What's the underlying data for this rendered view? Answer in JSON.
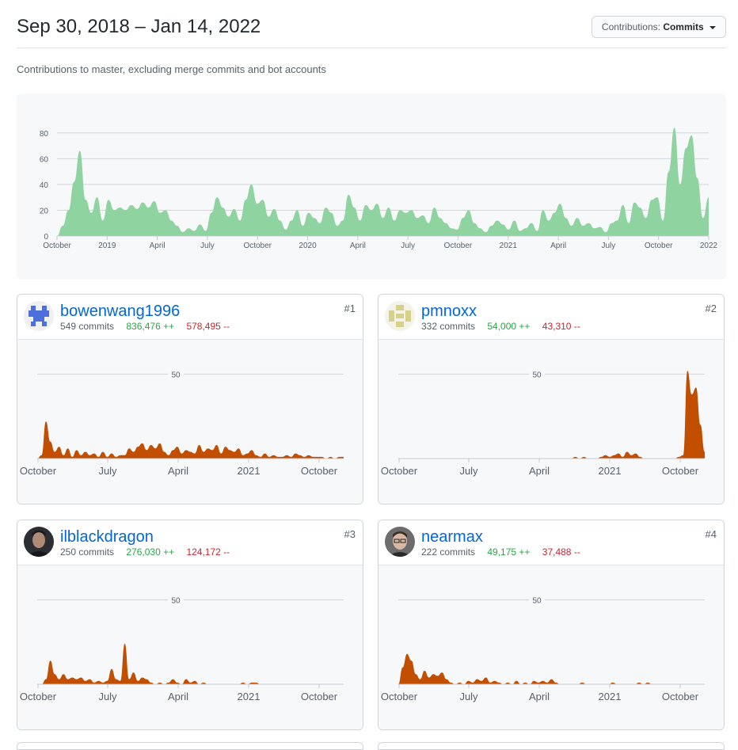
{
  "header": {
    "date_range": "Sep 30, 2018 – Jan 14, 2022",
    "contributions_label": "Contributions:",
    "contributions_value": "Commits"
  },
  "subtitle": "Contributions to master, excluding merge commits and bot accounts",
  "chart_data": [
    {
      "type": "area",
      "title": "",
      "color": "#8fd3a0",
      "ylim": [
        0,
        86
      ],
      "y_ticks": [
        "0",
        "20",
        "40",
        "60",
        "80"
      ],
      "y_tick_values": [
        0,
        20,
        40,
        60,
        80
      ],
      "x_tick_labels": [
        "October",
        "2019",
        "April",
        "July",
        "October",
        "2020",
        "April",
        "July",
        "October",
        "2021",
        "April",
        "July",
        "October",
        "2022"
      ],
      "grid": true,
      "values": [
        0,
        8,
        20,
        42,
        66,
        28,
        18,
        30,
        12,
        28,
        20,
        22,
        20,
        24,
        21,
        26,
        22,
        27,
        18,
        20,
        12,
        8,
        3,
        6,
        4,
        9,
        4,
        18,
        30,
        22,
        15,
        21,
        12,
        28,
        40,
        25,
        28,
        15,
        21,
        12,
        5,
        12,
        20,
        8,
        18,
        14,
        10,
        22,
        18,
        8,
        12,
        32,
        22,
        12,
        24,
        20,
        25,
        14,
        22,
        12,
        20,
        18,
        20,
        14,
        16,
        10,
        22,
        14,
        10,
        6,
        5,
        14,
        20,
        10,
        6,
        3,
        8,
        12,
        9,
        5,
        12,
        4,
        6,
        10,
        4,
        20,
        12,
        18,
        25,
        14,
        8,
        14,
        8,
        10,
        6,
        7,
        3,
        10,
        12,
        24,
        10,
        26,
        22,
        14,
        28,
        30,
        12,
        50,
        84,
        40,
        68,
        78,
        45,
        14,
        30
      ]
    },
    {
      "type": "area",
      "title": "bowenwang1996",
      "color": "#c24e00",
      "ylim": [
        0,
        60
      ],
      "y_ticks": [
        "50"
      ],
      "x_tick_labels": [
        "October",
        "July",
        "April",
        "2021",
        "October"
      ],
      "grid": true,
      "values": [
        0,
        2,
        22,
        10,
        4,
        7,
        2,
        6,
        1,
        5,
        2,
        4,
        2,
        3,
        1,
        4,
        1,
        3,
        1,
        2,
        2,
        6,
        4,
        7,
        9,
        5,
        8,
        6,
        9,
        4,
        2,
        5,
        7,
        3,
        5,
        4,
        3,
        8,
        4,
        6,
        5,
        8,
        3,
        7,
        5,
        4,
        6,
        2,
        3,
        5,
        2,
        1,
        3,
        1,
        2,
        1,
        1,
        2,
        1,
        3,
        2,
        1,
        2,
        1,
        1,
        1,
        0,
        1,
        0,
        1,
        1
      ]
    },
    {
      "type": "area",
      "title": "pmnoxx",
      "color": "#c24e00",
      "ylim": [
        0,
        60
      ],
      "y_ticks": [
        "50"
      ],
      "x_tick_labels": [
        "October",
        "July",
        "April",
        "2021",
        "October"
      ],
      "grid": true,
      "values": [
        0,
        0,
        0,
        0,
        0,
        0,
        0,
        0,
        0,
        0,
        0,
        0,
        0,
        0,
        0,
        0,
        0,
        0,
        0,
        0,
        0,
        0,
        0,
        0,
        0,
        0,
        0,
        0,
        0,
        0,
        0,
        0,
        0,
        0,
        0,
        0,
        0,
        0,
        0,
        0,
        0,
        1,
        0,
        1,
        0,
        0,
        0,
        1,
        2,
        1,
        2,
        3,
        1,
        4,
        2,
        3,
        1,
        0,
        0,
        0,
        0,
        0,
        0,
        0,
        0,
        1,
        2,
        52,
        38,
        42,
        20,
        4
      ]
    },
    {
      "type": "area",
      "title": "ilblackdragon",
      "color": "#c24e00",
      "ylim": [
        0,
        60
      ],
      "y_ticks": [
        "50"
      ],
      "x_tick_labels": [
        "October",
        "July",
        "April",
        "2021",
        "October"
      ],
      "grid": true,
      "values": [
        0,
        0,
        3,
        14,
        6,
        3,
        6,
        3,
        4,
        3,
        4,
        2,
        3,
        1,
        2,
        1,
        2,
        9,
        3,
        2,
        24,
        3,
        7,
        2,
        4,
        3,
        1,
        0,
        1,
        0,
        1,
        3,
        1,
        0,
        3,
        1,
        2,
        0,
        1,
        0,
        0,
        0,
        0,
        0,
        0,
        0,
        0,
        1,
        0,
        1,
        1,
        0,
        0,
        0,
        0,
        0,
        0,
        0,
        0,
        0,
        0,
        0,
        0,
        0,
        0,
        0,
        0,
        0,
        0,
        0,
        0
      ]
    },
    {
      "type": "area",
      "title": "nearmax",
      "color": "#c24e00",
      "ylim": [
        0,
        60
      ],
      "y_ticks": [
        "50"
      ],
      "x_tick_labels": [
        "October",
        "July",
        "April",
        "2021",
        "October"
      ],
      "grid": true,
      "values": [
        0,
        10,
        18,
        14,
        6,
        3,
        8,
        4,
        6,
        5,
        7,
        3,
        1,
        0,
        1,
        0,
        2,
        1,
        3,
        2,
        4,
        1,
        2,
        1,
        0,
        1,
        0,
        2,
        0,
        1,
        0,
        2,
        1,
        2,
        1,
        3,
        1,
        0,
        0,
        0,
        0,
        0,
        1,
        0,
        0,
        0,
        0,
        0,
        0,
        1,
        0,
        0,
        0,
        0,
        0,
        1,
        0,
        1,
        0,
        0,
        0,
        0,
        0,
        0,
        0,
        0,
        0,
        0,
        0,
        0,
        0
      ]
    }
  ],
  "contributors": [
    {
      "name": "bowenwang1996",
      "commits": "549 commits",
      "additions": "836,476 ++",
      "deletions": "578,495 --",
      "rank": "#1",
      "avatar_icon": "identicon-blue"
    },
    {
      "name": "pmnoxx",
      "commits": "332 commits",
      "additions": "54,000 ++",
      "deletions": "43,310 --",
      "rank": "#2",
      "avatar_icon": "identicon-olive"
    },
    {
      "name": "ilblackdragon",
      "commits": "250 commits",
      "additions": "276,030 ++",
      "deletions": "124,172 --",
      "rank": "#3",
      "avatar_icon": "photo-avatar"
    },
    {
      "name": "nearmax",
      "commits": "222 commits",
      "additions": "49,175 ++",
      "deletions": "37,488 --",
      "rank": "#4",
      "avatar_icon": "photo-avatar"
    }
  ]
}
